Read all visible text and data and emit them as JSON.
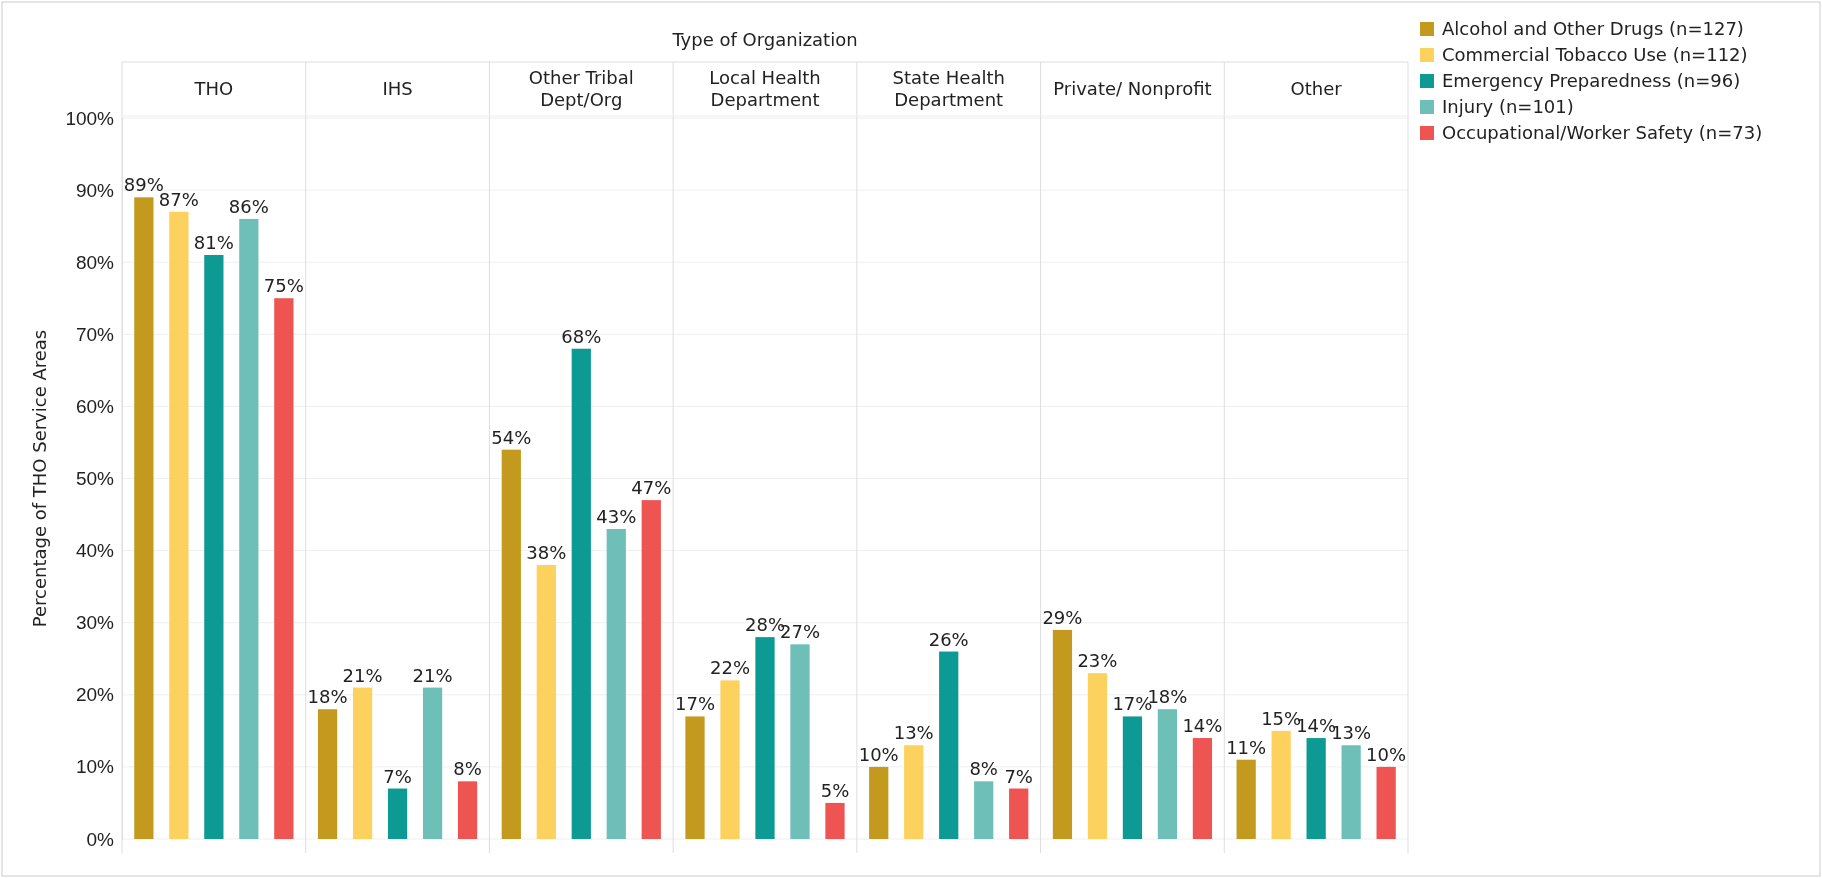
{
  "chart_data": {
    "type": "bar",
    "xlabel": "Type of Organization",
    "ylabel": "Percentage of THO Service Areas",
    "categories": [
      "THO",
      "IHS",
      "Other Tribal Dept/Org",
      "Local Health Department",
      "State Health Department",
      "Private/ Nonprofit",
      "Other"
    ],
    "series": [
      {
        "name": "Alcohol and Other Drugs (n=127)",
        "color": "#c39a1d",
        "values": [
          89,
          18,
          54,
          17,
          10,
          29,
          11
        ],
        "value_labels": [
          "89%",
          "18%",
          "54%",
          "17%",
          "10%",
          "29%",
          "11%"
        ]
      },
      {
        "name": "Commercial Tobacco Use (n=112)",
        "color": "#fdd15e",
        "values": [
          87,
          21,
          38,
          22,
          13,
          23,
          15
        ],
        "value_labels": [
          "87%",
          "21%",
          "38%",
          "22%",
          "13%",
          "23%",
          "15%"
        ]
      },
      {
        "name": "Emergency Preparedness (n=96)",
        "color": "#0e9a94",
        "values": [
          81,
          7,
          68,
          28,
          26,
          17,
          14
        ],
        "value_labels": [
          "81%",
          "7%",
          "68%",
          "28%",
          "26%",
          "17%",
          "14%"
        ]
      },
      {
        "name": "Injury (n=101)",
        "color": "#6dbfb8",
        "values": [
          86,
          21,
          43,
          27,
          8,
          18,
          13
        ],
        "value_labels": [
          "86%",
          "21%",
          "43%",
          "27%",
          "8%",
          "18%",
          "13%"
        ]
      },
      {
        "name": "Occupational/Worker Safety (n=73)",
        "color": "#ee5452",
        "values": [
          75,
          8,
          47,
          5,
          7,
          14,
          10
        ],
        "value_labels": [
          "75%",
          "8%",
          "47%",
          "5%",
          "7%",
          "14%",
          "10%"
        ]
      }
    ],
    "ylim": [
      0,
      100
    ],
    "yticks": [
      {
        "value": 0,
        "label": "0%"
      },
      {
        "value": 10,
        "label": "10%"
      },
      {
        "value": 20,
        "label": "20%"
      },
      {
        "value": 30,
        "label": "30%"
      },
      {
        "value": 40,
        "label": "40%"
      },
      {
        "value": 50,
        "label": "50%"
      },
      {
        "value": 60,
        "label": "60%"
      },
      {
        "value": 70,
        "label": "70%"
      },
      {
        "value": 80,
        "label": "80%"
      },
      {
        "value": 90,
        "label": "90%"
      },
      {
        "value": 100,
        "label": "100%"
      }
    ],
    "grid": "y",
    "legend": "top right"
  }
}
